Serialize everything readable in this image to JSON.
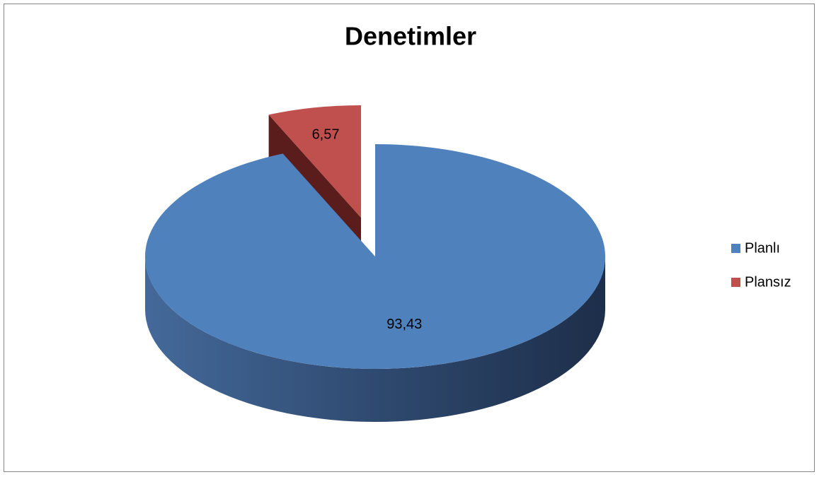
{
  "chart_data": {
    "type": "pie",
    "title": "Denetimler",
    "categories": [
      "Planlı",
      "Plansız"
    ],
    "values": [
      93.43,
      6.57
    ],
    "value_labels": [
      "93,43",
      "6,57"
    ],
    "colors": [
      "#4f81bd",
      "#c0504d"
    ],
    "legend": "right"
  }
}
